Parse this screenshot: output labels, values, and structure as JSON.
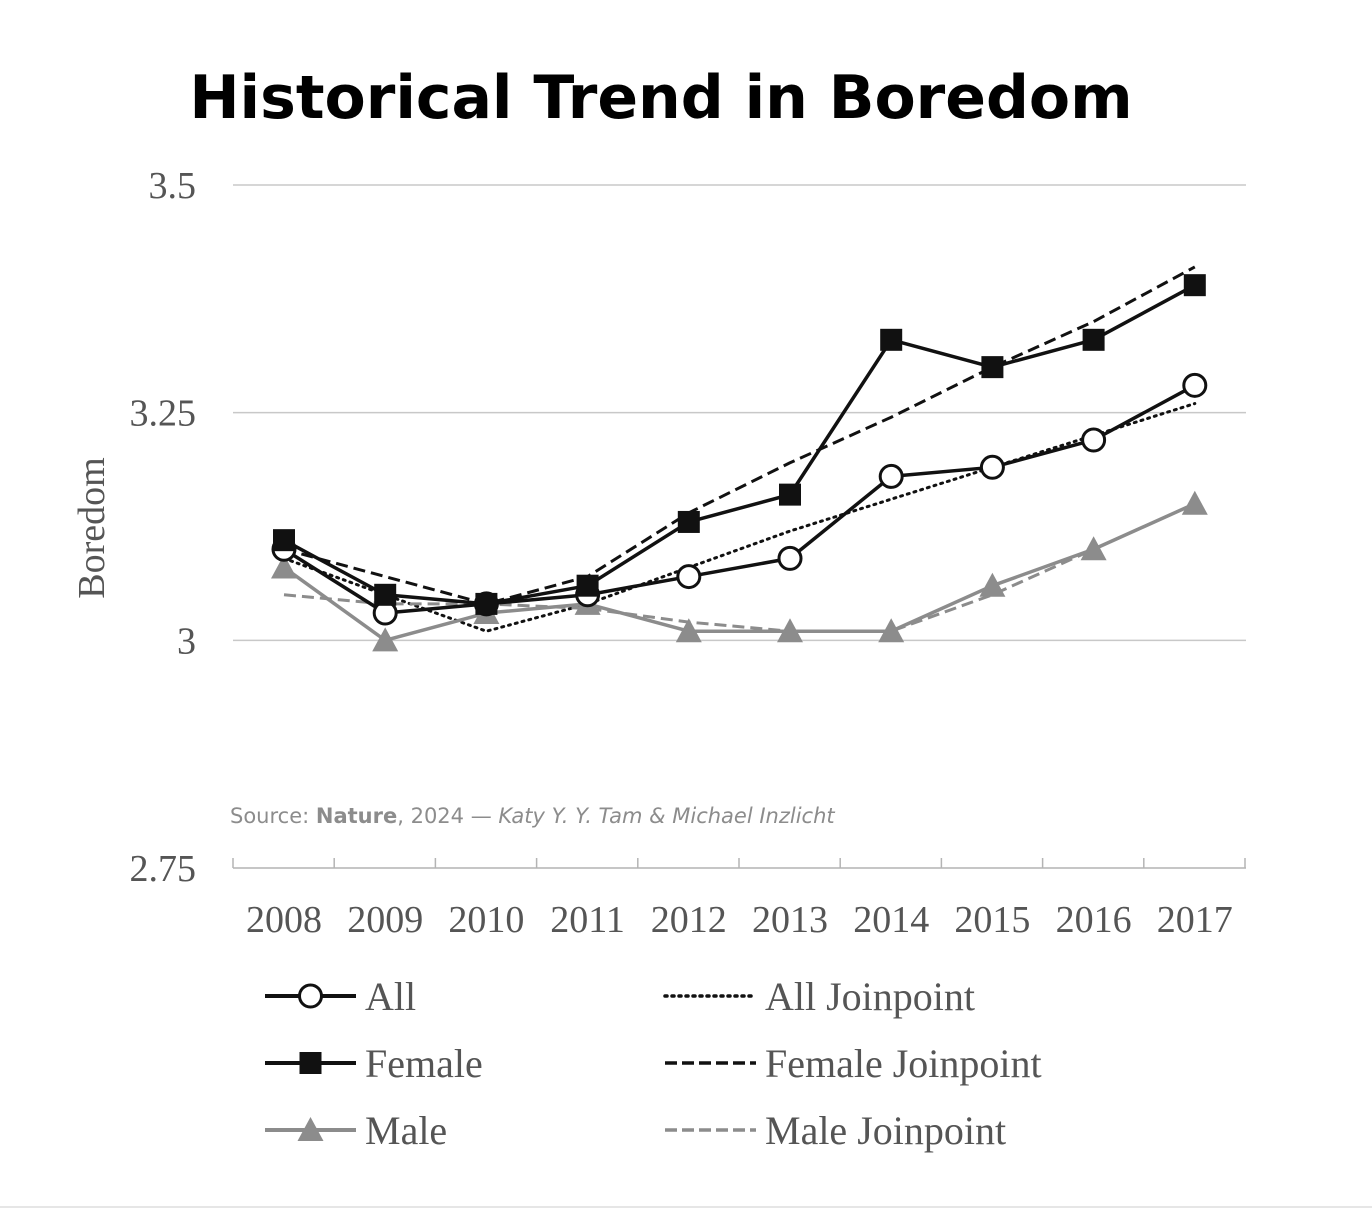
{
  "chart_data": {
    "type": "line",
    "title": "Historical Trend in Boredom",
    "ylabel": "Boredom",
    "xlabel": "",
    "ylim": [
      2.75,
      3.5
    ],
    "yticks": [
      "3.5",
      "3.25",
      "3",
      "2.75"
    ],
    "grid": true,
    "legend_position": "bottom",
    "categories": [
      "2008",
      "2009",
      "2010",
      "2011",
      "2012",
      "2013",
      "2014",
      "2015",
      "2016",
      "2017"
    ],
    "series": [
      {
        "name": "All",
        "values": [
          3.1,
          3.03,
          3.04,
          3.05,
          3.07,
          3.09,
          3.18,
          3.19,
          3.22,
          3.28
        ],
        "color": "#111111",
        "marker": "circle-open",
        "style": "solid"
      },
      {
        "name": "Female",
        "values": [
          3.11,
          3.05,
          3.04,
          3.06,
          3.13,
          3.16,
          3.33,
          3.3,
          3.33,
          3.39
        ],
        "color": "#111111",
        "marker": "square",
        "style": "solid"
      },
      {
        "name": "Male",
        "values": [
          3.08,
          3.0,
          3.03,
          3.04,
          3.01,
          3.01,
          3.01,
          3.06,
          3.1,
          3.15
        ],
        "color": "#8c8c8c",
        "marker": "triangle",
        "style": "solid"
      },
      {
        "name": "All Joinpoint",
        "values": [
          3.09,
          3.05,
          3.01,
          3.04,
          3.08,
          3.12,
          3.155,
          3.19,
          3.225,
          3.26
        ],
        "color": "#111111",
        "marker": "none",
        "style": "dotted"
      },
      {
        "name": "Female Joinpoint",
        "values": [
          3.1,
          3.07,
          3.04,
          3.07,
          3.14,
          3.195,
          3.245,
          3.3,
          3.35,
          3.41
        ],
        "color": "#111111",
        "marker": "none",
        "style": "dashed"
      },
      {
        "name": "Male Joinpoint",
        "values": [
          3.05,
          3.04,
          3.04,
          3.035,
          3.02,
          3.01,
          3.01,
          3.05,
          3.1,
          3.15
        ],
        "color": "#8c8c8c",
        "marker": "none",
        "style": "dashed"
      }
    ],
    "source": {
      "prefix": "Source: ",
      "journal": "Nature",
      "year": ", 2024 — ",
      "authors": "Katy Y. Y. Tam & Michael Inzlicht"
    }
  }
}
